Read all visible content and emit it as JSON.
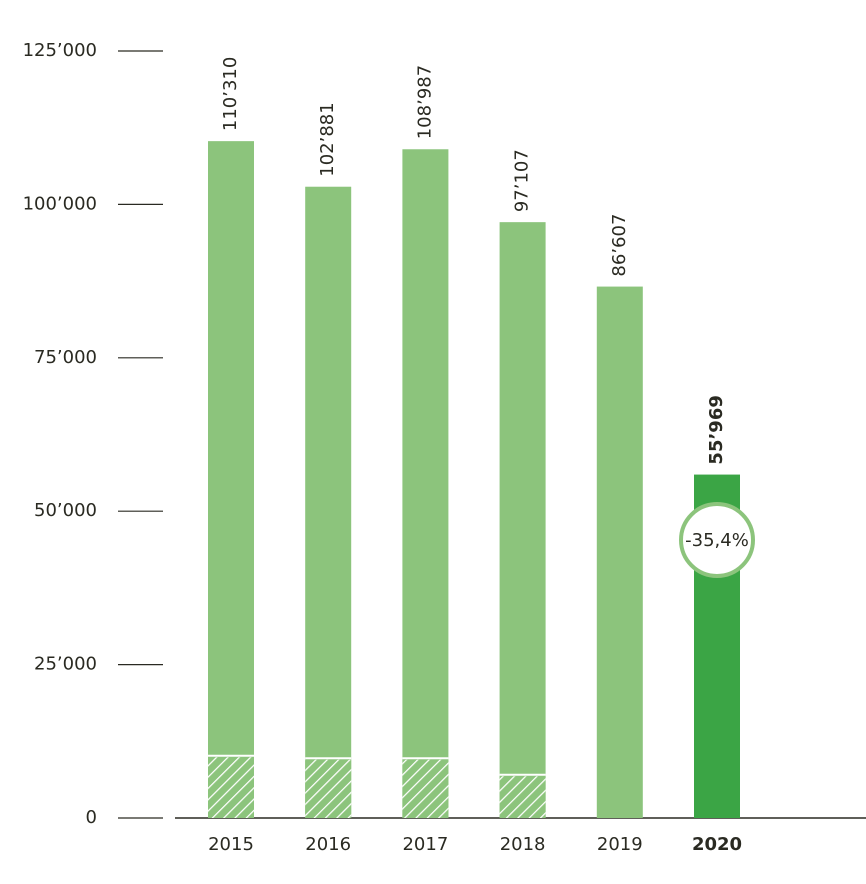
{
  "chart_data": {
    "type": "bar",
    "categories": [
      "2015",
      "2016",
      "2017",
      "2018",
      "2019",
      "2020"
    ],
    "values": [
      110310,
      102881,
      108987,
      97107,
      86607,
      55969
    ],
    "value_labels": [
      "110’310",
      "102’881",
      "108’987",
      "97’107",
      "86’607",
      "55’969"
    ],
    "colors": [
      "#8cc47c",
      "#8cc47c",
      "#8cc47c",
      "#8cc47c",
      "#8cc47c",
      "#3ba545"
    ],
    "highlight_index": 5,
    "series": [
      {
        "color": "#8cc47c",
        "pattern": "hatch",
        "values": [
          9900,
          9500,
          9500,
          6800,
          null,
          null
        ]
      }
    ],
    "annotation": "-35,4%",
    "ylim": [
      0,
      125000
    ],
    "yticks": [
      0,
      {
        "value": 25000,
        "label": "25’000"
      },
      {
        "value": 50000,
        "label": "50’000"
      },
      {
        "value": 75000,
        "label": "75’000"
      },
      {
        "value": 100000,
        "label": "100’000"
      },
      {
        "value": 125000,
        "label": "125’000"
      }
    ]
  }
}
